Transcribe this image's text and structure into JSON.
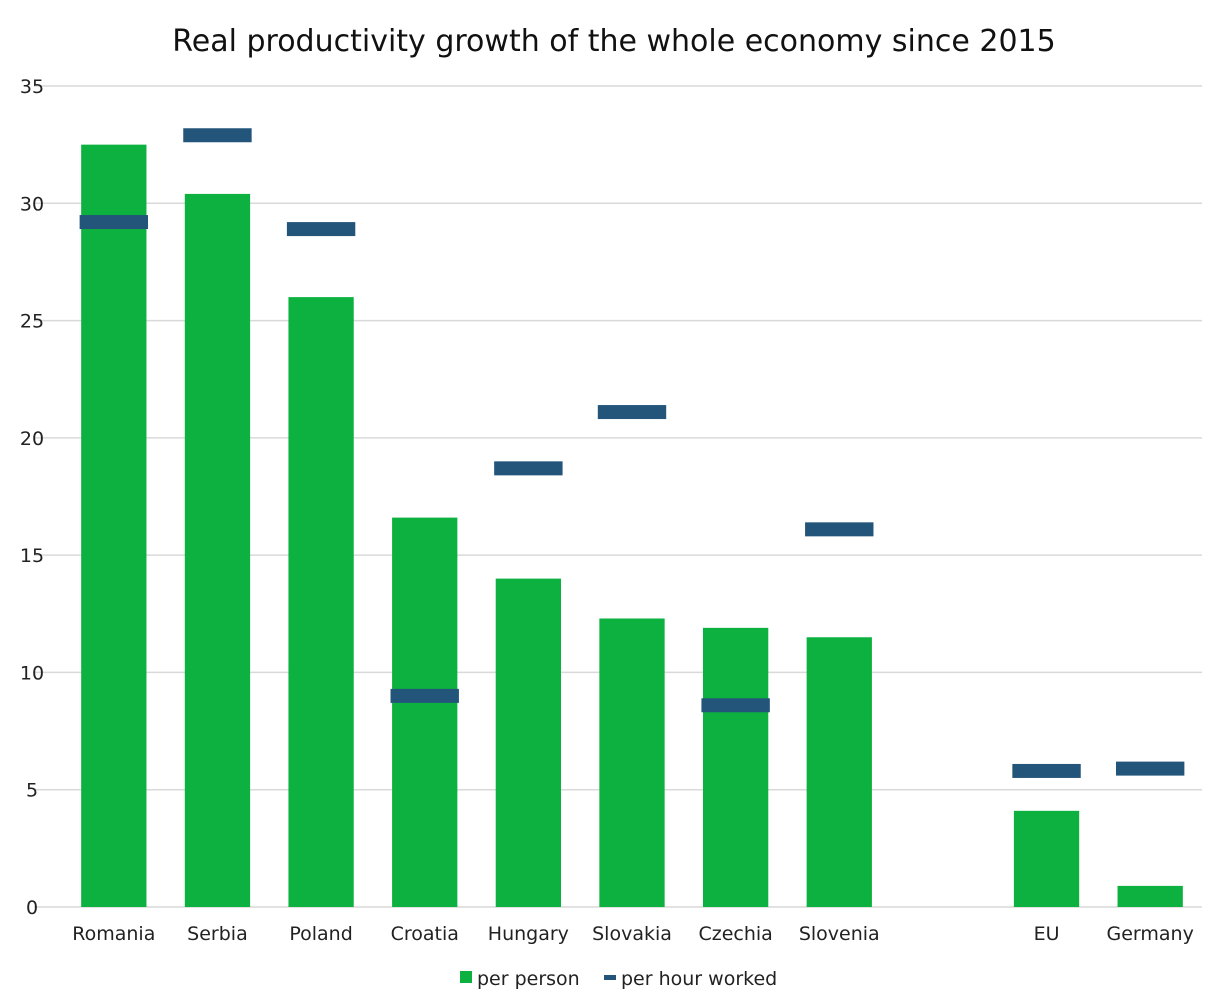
{
  "chart_data": {
    "type": "bar",
    "title": "Real productivity growth of the whole economy since 2015",
    "xlabel": "",
    "ylabel": "",
    "ylim": [
      0,
      35
    ],
    "yticks": [
      0,
      5,
      10,
      15,
      20,
      25,
      30,
      35
    ],
    "grid": true,
    "legend_position": "bottom",
    "categories": [
      "Romania",
      "Serbia",
      "Poland",
      "Croatia",
      "Hungary",
      "Slovakia",
      "Czechia",
      "Slovenia",
      "",
      "EU",
      "Germany"
    ],
    "series": [
      {
        "name": "per person",
        "type": "bar",
        "color": "#0db140",
        "values": [
          32.5,
          30.4,
          26.0,
          16.6,
          14.0,
          12.3,
          11.9,
          11.5,
          null,
          4.1,
          0.9
        ]
      },
      {
        "name": "per hour worked",
        "type": "marker",
        "color": "#23557a",
        "values": [
          29.2,
          32.9,
          28.9,
          9.0,
          18.7,
          21.1,
          8.6,
          16.1,
          null,
          5.8,
          5.9
        ]
      }
    ]
  }
}
